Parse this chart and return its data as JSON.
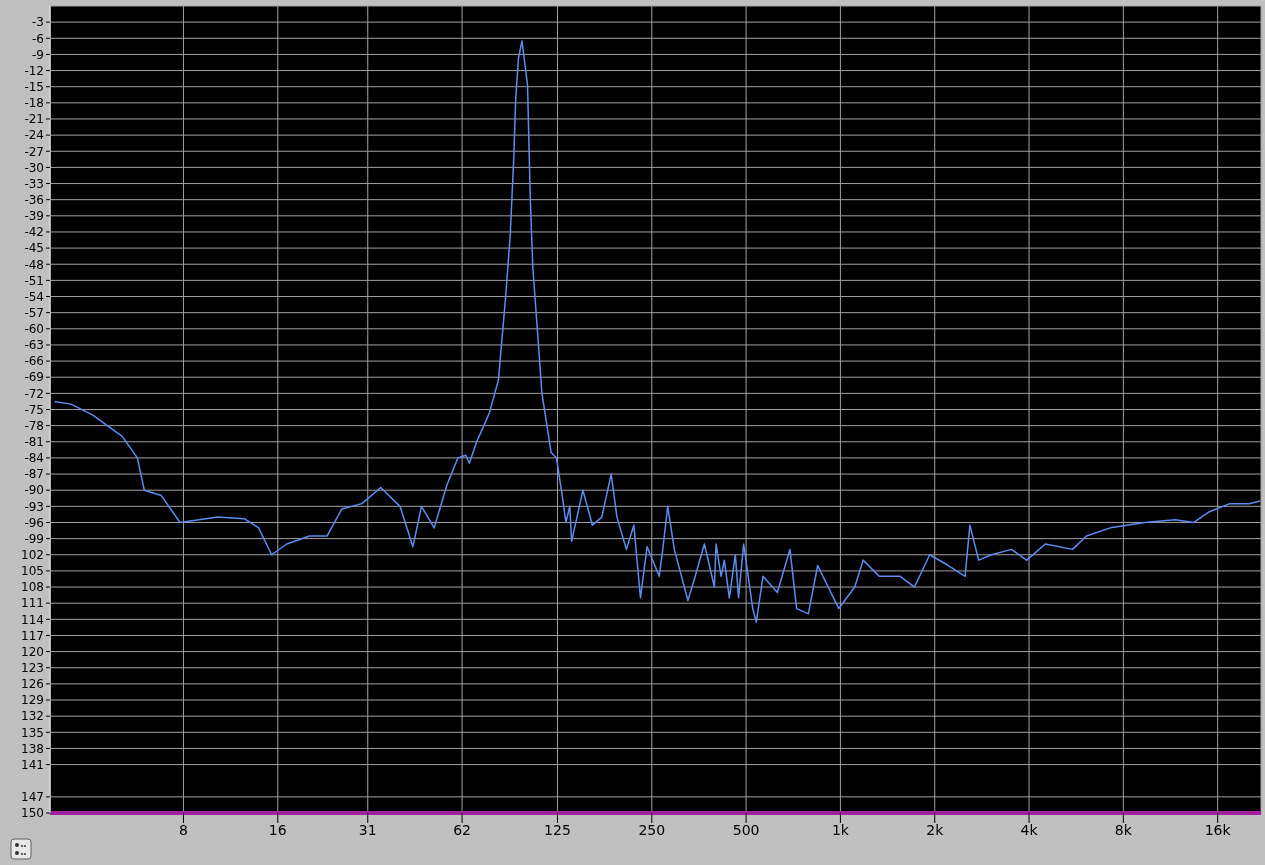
{
  "chart_data": {
    "type": "line",
    "log": "x",
    "grid": true,
    "marker": "none",
    "line_style": "solid",
    "xlim": [
      3,
      22000
    ],
    "xticks": [
      8,
      16,
      31,
      62,
      125,
      250,
      500,
      {
        "value": 1000,
        "label": "1k"
      },
      {
        "value": 2000,
        "label": "2k"
      },
      {
        "value": 4000,
        "label": "4k"
      },
      {
        "value": 8000,
        "label": "8k"
      },
      {
        "value": 16000,
        "label": "16k"
      }
    ],
    "ylim": [
      -150,
      0
    ],
    "yticks": [
      -3,
      -6,
      -9,
      -12,
      -15,
      -18,
      -21,
      -24,
      -27,
      -30,
      -33,
      -36,
      -39,
      -42,
      -45,
      -48,
      -51,
      -54,
      -57,
      -60,
      -63,
      -66,
      -69,
      -72,
      -75,
      -78,
      -81,
      -84,
      -87,
      -90,
      -93,
      -96,
      -99,
      {
        "value": -102,
        "label": "102"
      },
      {
        "value": -105,
        "label": "105"
      },
      {
        "value": -108,
        "label": "108"
      },
      {
        "value": -111,
        "label": "111"
      },
      {
        "value": -114,
        "label": "114"
      },
      {
        "value": -117,
        "label": "117"
      },
      {
        "value": -120,
        "label": "120"
      },
      {
        "value": -123,
        "label": "123"
      },
      {
        "value": -126,
        "label": "126"
      },
      {
        "value": -129,
        "label": "129"
      },
      {
        "value": -132,
        "label": "132"
      },
      {
        "value": -135,
        "label": "135"
      },
      {
        "value": -138,
        "label": "138"
      },
      {
        "value": -141,
        "label": "141"
      },
      {
        "value": -147,
        "label": "147"
      },
      {
        "value": -150,
        "label": "150"
      }
    ],
    "series": [
      {
        "color": "#5b8cf0",
        "x": [
          3.1,
          3.5,
          4.1,
          5.1,
          5.7,
          6.0,
          6.8,
          7.8,
          10.3,
          12.5,
          13.9,
          15.3,
          17.1,
          20.2,
          23.0,
          25.6,
          29.7,
          34.1,
          39.3,
          43.2,
          46.0,
          50.5,
          55.5,
          60.1,
          63.7,
          65.4,
          69.0,
          72.8,
          75.8,
          81.0,
          85.4,
          88.3,
          90.7,
          91.9,
          93.8,
          96.3,
          100.3,
          102.3,
          104.3,
          107.9,
          111.5,
          119.3,
          124.1,
          129.4,
          133.0,
          136.8,
          138.7,
          150.7,
          161.5,
          173.1,
          185.5,
          193.5,
          207.4,
          219.1,
          230.0,
          241.5,
          264,
          271,
          281,
          295,
          326,
          342,
          368,
          396,
          401,
          416,
          426,
          442,
          462,
          473,
          491,
          525,
          539,
          566,
          629,
          690,
          725,
          790,
          846,
          988,
          1111,
          1182,
          1329,
          1552,
          1724,
          1927,
          2210,
          2500,
          2590,
          2762,
          3036,
          3516,
          3930,
          4512,
          5505,
          6100,
          7264,
          9360,
          11700,
          13430,
          15060,
          17500,
          20120,
          21900
        ],
        "values": [
          -73.5,
          -74,
          -76,
          -80,
          -84,
          -90,
          -91,
          -96,
          -95,
          -95.3,
          -97,
          -102,
          -100,
          -98.5,
          -98.5,
          -93.5,
          -92.5,
          -89.5,
          -93,
          -100.5,
          -93,
          -97,
          -89,
          -84,
          -83.5,
          -85,
          -81,
          -78,
          -75.6,
          -69.5,
          -54,
          -42.7,
          -28,
          -17.6,
          -9.8,
          -6.5,
          -14.7,
          -35.4,
          -48.7,
          -60.4,
          -72,
          -83,
          -84,
          -91,
          -96,
          -93,
          -99.5,
          -90,
          -96.5,
          -95,
          -87,
          -95,
          -101,
          -96.5,
          -110,
          -100.5,
          -106,
          -101,
          -93,
          -101,
          -110.5,
          -106.5,
          -100,
          -108,
          -100,
          -106,
          -103,
          -110,
          -102,
          -110,
          -100,
          -112,
          -114.5,
          -106,
          -109,
          -101,
          -112,
          -113,
          -104,
          -112,
          -108,
          -103,
          -106,
          -106,
          -108,
          -102,
          -104,
          -106,
          -96.5,
          -103,
          -102,
          -101,
          -103,
          -100,
          -101,
          -98.5,
          -97,
          -96,
          -95.5,
          -96,
          -94,
          -92.5,
          -92.5,
          -92
        ]
      }
    ]
  }
}
